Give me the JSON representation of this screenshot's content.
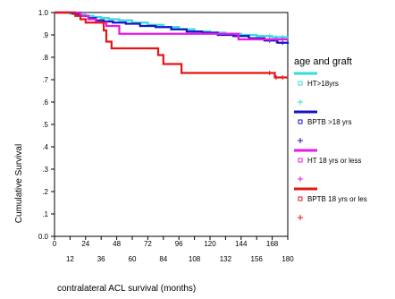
{
  "chart_data": {
    "type": "line",
    "step": true,
    "title": "",
    "xlabel": "contralateral ACL survival (months)",
    "ylabel": "Cumulative Survival",
    "xlim": [
      0,
      180
    ],
    "ylim": [
      0.0,
      1.0
    ],
    "x_ticks_upper": [
      "0",
      "24",
      "48",
      "72",
      "96",
      "120",
      "144",
      "168"
    ],
    "x_ticks_lower": [
      "12",
      "36",
      "60",
      "84",
      "108",
      "132",
      "156",
      "180"
    ],
    "y_ticks": [
      "0.0",
      ".1",
      ".2",
      ".3",
      ".4",
      ".5",
      ".6",
      ".7",
      ".8",
      ".9",
      "1.0"
    ],
    "legend_title": "age and graft",
    "legend_position": "right",
    "series": [
      {
        "name": "HT>18yrs",
        "color": "#33dcdc",
        "censor_color": "#33dcdc",
        "points": [
          [
            0,
            1.0
          ],
          [
            8,
            1.0
          ],
          [
            12,
            0.995
          ],
          [
            18,
            0.99
          ],
          [
            24,
            0.985
          ],
          [
            30,
            0.98
          ],
          [
            36,
            0.975
          ],
          [
            42,
            0.97
          ],
          [
            50,
            0.965
          ],
          [
            60,
            0.955
          ],
          [
            72,
            0.945
          ],
          [
            84,
            0.935
          ],
          [
            96,
            0.925
          ],
          [
            108,
            0.915
          ],
          [
            120,
            0.91
          ],
          [
            132,
            0.905
          ],
          [
            144,
            0.9
          ],
          [
            156,
            0.895
          ],
          [
            168,
            0.89
          ],
          [
            180,
            0.885
          ]
        ]
      },
      {
        "name": "BPTB >18 yrs",
        "color": "#1414c8",
        "censor_color": "#1414c8",
        "points": [
          [
            0,
            1.0
          ],
          [
            10,
            1.0
          ],
          [
            14,
            0.995
          ],
          [
            20,
            0.985
          ],
          [
            26,
            0.975
          ],
          [
            32,
            0.965
          ],
          [
            38,
            0.96
          ],
          [
            45,
            0.955
          ],
          [
            55,
            0.95
          ],
          [
            66,
            0.94
          ],
          [
            78,
            0.935
          ],
          [
            90,
            0.925
          ],
          [
            102,
            0.915
          ],
          [
            114,
            0.91
          ],
          [
            126,
            0.9
          ],
          [
            138,
            0.895
          ],
          [
            150,
            0.885
          ],
          [
            162,
            0.875
          ],
          [
            172,
            0.865
          ],
          [
            180,
            0.86
          ]
        ]
      },
      {
        "name": "HT 18 yrs or less",
        "color": "#e619e6",
        "censor_color": "#e619e6",
        "points": [
          [
            0,
            1.0
          ],
          [
            18,
            1.0
          ],
          [
            20,
            0.985
          ],
          [
            26,
            0.97
          ],
          [
            32,
            0.955
          ],
          [
            40,
            0.94
          ],
          [
            50,
            0.905
          ],
          [
            140,
            0.905
          ],
          [
            142,
            0.88
          ],
          [
            180,
            0.88
          ]
        ]
      },
      {
        "name": "BPTB 18 yrs or les",
        "color": "#e61414",
        "censor_color": "#e61414",
        "points": [
          [
            0,
            1.0
          ],
          [
            14,
            1.0
          ],
          [
            16,
            0.985
          ],
          [
            20,
            0.97
          ],
          [
            24,
            0.955
          ],
          [
            36,
            0.955
          ],
          [
            38,
            0.92
          ],
          [
            40,
            0.87
          ],
          [
            44,
            0.84
          ],
          [
            78,
            0.84
          ],
          [
            80,
            0.81
          ],
          [
            84,
            0.77
          ],
          [
            96,
            0.77
          ],
          [
            98,
            0.73
          ],
          [
            168,
            0.73
          ],
          [
            170,
            0.71
          ],
          [
            180,
            0.71
          ]
        ]
      }
    ]
  }
}
